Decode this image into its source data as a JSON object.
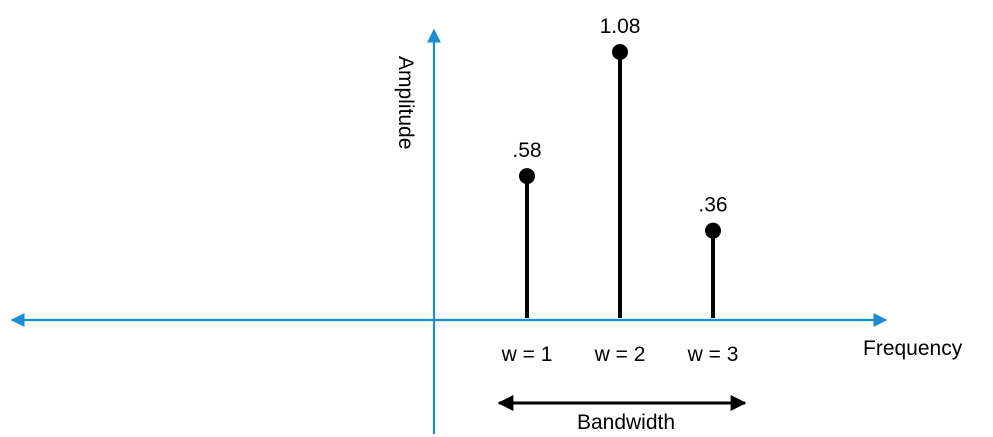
{
  "chart_data": {
    "type": "stem",
    "xlabel": "Frequency",
    "ylabel": "Amplitude",
    "points": [
      {
        "x": 1,
        "y": 0.58,
        "value_label": ".58",
        "tick_label": "w = 1"
      },
      {
        "x": 2,
        "y": 1.08,
        "value_label": "1.08",
        "tick_label": "w = 2"
      },
      {
        "x": 3,
        "y": 0.36,
        "value_label": ".36",
        "tick_label": "w = 3"
      }
    ],
    "ylim": [
      0,
      1.08
    ],
    "annotation": {
      "text": "Bandwidth",
      "from_x": 1,
      "to_x": 3
    },
    "grid": false,
    "colors": {
      "axis": "#1a8fd0",
      "stem": "#000000"
    }
  }
}
